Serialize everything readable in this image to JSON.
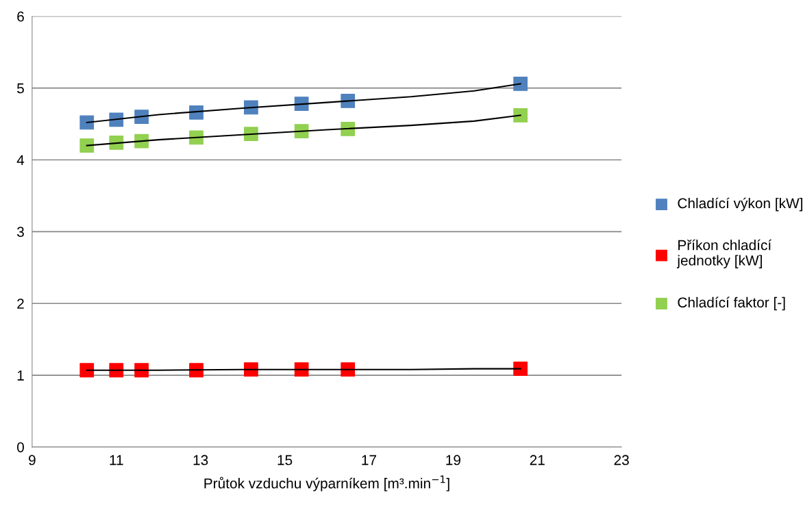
{
  "chart_data": {
    "type": "scatter",
    "xlabel": "Průtok vzduchu výparníkem [m³.min$^{−1}$]",
    "x": [
      10.3,
      11.0,
      11.6,
      12.9,
      14.2,
      15.4,
      16.5,
      20.6
    ],
    "series": [
      {
        "name": "Chladící výkon [kW]",
        "color": "#4f81bd",
        "values": [
          4.52,
          4.56,
          4.6,
          4.66,
          4.73,
          4.78,
          4.82,
          5.06
        ]
      },
      {
        "name": "Příkon chladící\njednotky [kW]",
        "color": "#ff0000",
        "values": [
          1.07,
          1.07,
          1.07,
          1.07,
          1.08,
          1.08,
          1.08,
          1.09
        ]
      },
      {
        "name": "Chladící faktor [-]",
        "color": "#92d050",
        "values": [
          4.2,
          4.24,
          4.26,
          4.31,
          4.36,
          4.4,
          4.43,
          4.62
        ]
      },
      {
        "type": "line",
        "marker": "none",
        "color": "#000000",
        "x": [
          10.3,
          12,
          14,
          16,
          18,
          19.5,
          20.6
        ],
        "values": [
          4.52,
          4.63,
          4.72,
          4.8,
          4.88,
          4.96,
          5.06
        ]
      },
      {
        "type": "line",
        "marker": "none",
        "color": "#000000",
        "x": [
          10.3,
          12,
          14,
          16,
          18,
          19.5,
          20.6
        ],
        "values": [
          1.07,
          1.07,
          1.08,
          1.08,
          1.08,
          1.09,
          1.09
        ]
      },
      {
        "type": "line",
        "marker": "none",
        "color": "#000000",
        "x": [
          10.3,
          12,
          14,
          16,
          18,
          19.5,
          20.6
        ],
        "values": [
          4.2,
          4.28,
          4.35,
          4.42,
          4.48,
          4.54,
          4.62
        ]
      }
    ],
    "xlim": [
      9,
      23
    ],
    "xticks": [
      9,
      11,
      13,
      15,
      17,
      19,
      21,
      23
    ],
    "ylim": [
      0,
      6
    ],
    "yticks": [
      0,
      1,
      2,
      3,
      4,
      5,
      6
    ],
    "grid": "y",
    "legend": "right",
    "marker": "square"
  }
}
